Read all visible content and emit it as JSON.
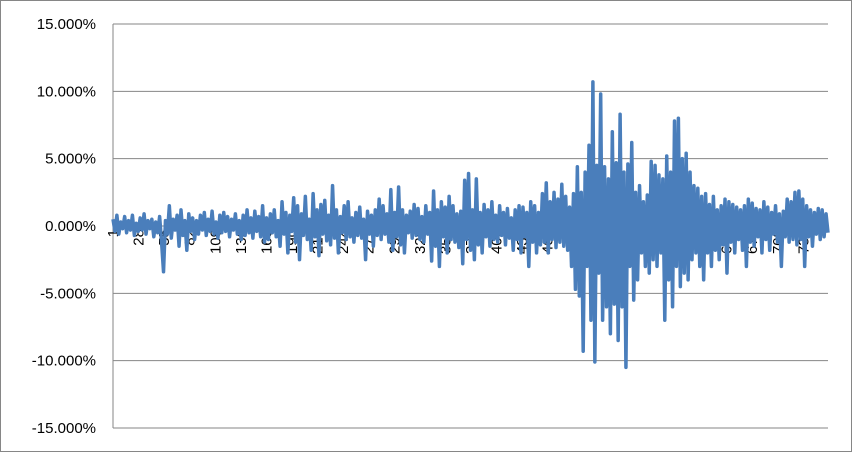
{
  "chart_data": {
    "type": "line",
    "title": "",
    "xlabel": "",
    "ylabel": "",
    "ylim": [
      -0.15,
      0.15
    ],
    "y_ticks": [
      "15.000%",
      "10.000%",
      "5.000%",
      "0.000%",
      "-5.000%",
      "-10.000%",
      "-15.000%"
    ],
    "y_tick_values": [
      0.15,
      0.1,
      0.05,
      0.0,
      -0.05,
      -0.1,
      -0.15
    ],
    "x_range": [
      1,
      756
    ],
    "x_ticks": [
      "1",
      "28",
      "55",
      "82",
      "109",
      "136",
      "163",
      "190",
      "217",
      "244",
      "271",
      "298",
      "325",
      "352",
      "379",
      "406",
      "433",
      "460",
      "487",
      "514",
      "541",
      "568",
      "595",
      "622",
      "649",
      "676",
      "703",
      "730"
    ],
    "gridlines": true,
    "legend": "none",
    "series_color": "#4a7ebb",
    "series": [
      {
        "name": "",
        "values": [
          0.005,
          -0.004,
          0.008,
          -0.006,
          0.003,
          -0.002,
          0.007,
          -0.005,
          0.004,
          -0.003,
          0.008,
          -0.007,
          0.002,
          -0.004,
          0.006,
          -0.003,
          0.009,
          -0.006,
          0.004,
          -0.002,
          0.005,
          -0.008,
          0.003,
          -0.005,
          0.007,
          -0.012,
          -0.034,
          0.004,
          -0.006,
          0.015,
          -0.009,
          0.005,
          -0.003,
          0.008,
          -0.015,
          0.012,
          -0.007,
          0.004,
          -0.018,
          0.009,
          -0.004,
          0.006,
          -0.01,
          0.004,
          -0.006,
          0.008,
          -0.003,
          0.01,
          -0.007,
          0.005,
          -0.004,
          0.011,
          -0.006,
          0.003,
          -0.009,
          0.008,
          -0.005,
          0.01,
          -0.004,
          0.007,
          -0.008,
          0.005,
          -0.003,
          0.009,
          -0.006,
          0.004,
          -0.01,
          0.008,
          -0.007,
          0.012,
          -0.005,
          0.006,
          -0.009,
          0.011,
          -0.004,
          0.007,
          -0.008,
          0.015,
          -0.012,
          0.006,
          -0.01,
          0.009,
          -0.005,
          0.012,
          -0.008,
          0.004,
          -0.015,
          0.018,
          -0.006,
          0.01,
          -0.02,
          0.008,
          -0.004,
          0.021,
          -0.012,
          0.015,
          -0.025,
          0.009,
          -0.007,
          0.022,
          -0.01,
          0.005,
          -0.018,
          0.024,
          -0.008,
          0.012,
          -0.022,
          0.016,
          -0.006,
          0.019,
          -0.011,
          0.008,
          -0.014,
          0.03,
          -0.009,
          0.012,
          -0.02,
          0.007,
          -0.005,
          0.015,
          -0.01,
          0.018,
          -0.008,
          0.006,
          -0.012,
          0.01,
          -0.007,
          0.014,
          -0.009,
          0.005,
          -0.025,
          0.011,
          -0.006,
          0.008,
          -0.015,
          0.012,
          -0.007,
          0.02,
          -0.01,
          0.015,
          -0.006,
          0.009,
          -0.012,
          0.027,
          -0.018,
          0.01,
          -0.008,
          0.029,
          -0.014,
          0.012,
          -0.02,
          0.008,
          -0.005,
          0.011,
          -0.009,
          0.016,
          -0.007,
          0.013,
          -0.01,
          0.007,
          -0.012,
          0.015,
          -0.006,
          0.01,
          -0.026,
          0.026,
          -0.015,
          0.012,
          -0.03,
          0.018,
          -0.008,
          0.014,
          -0.02,
          0.022,
          -0.01,
          0.015,
          -0.012,
          0.009,
          -0.016,
          0.011,
          -0.028,
          0.034,
          -0.01,
          0.039,
          -0.018,
          0.012,
          -0.025,
          0.035,
          -0.014,
          0.01,
          -0.02,
          0.016,
          -0.008,
          0.012,
          -0.015,
          0.018,
          -0.01,
          0.008,
          -0.012,
          0.015,
          -0.007,
          0.01,
          -0.014,
          0.013,
          -0.009,
          0.006,
          -0.018,
          0.012,
          -0.01,
          0.015,
          -0.02,
          0.014,
          -0.008,
          0.01,
          -0.03,
          0.018,
          -0.012,
          0.015,
          -0.02,
          0.01,
          -0.014,
          0.024,
          -0.012,
          0.032,
          -0.02,
          0.018,
          -0.01,
          0.025,
          -0.016,
          0.02,
          -0.012,
          0.031,
          -0.015,
          0.022,
          -0.018,
          0.014,
          -0.03,
          0.024,
          -0.047,
          0.044,
          -0.052,
          0.025,
          -0.093,
          0.04,
          -0.03,
          0.06,
          -0.07,
          0.107,
          -0.101,
          0.045,
          -0.035,
          0.098,
          -0.07,
          0.044,
          -0.06,
          0.035,
          -0.08,
          0.07,
          -0.058,
          0.047,
          -0.085,
          0.083,
          -0.06,
          0.04,
          -0.105,
          0.046,
          -0.03,
          0.062,
          -0.055,
          0.025,
          -0.04,
          0.03,
          -0.02,
          0.018,
          -0.03,
          0.023,
          -0.035,
          0.048,
          -0.025,
          0.045,
          -0.03,
          0.038,
          -0.02,
          0.035,
          -0.07,
          0.052,
          -0.04,
          0.04,
          -0.06,
          0.078,
          -0.03,
          0.08,
          -0.045,
          0.05,
          -0.035,
          0.054,
          -0.04,
          0.04,
          -0.025,
          0.03,
          -0.02,
          0.028,
          -0.03,
          0.022,
          -0.04,
          0.024,
          -0.02,
          0.016,
          -0.03,
          0.022,
          -0.018,
          0.012,
          -0.025,
          0.015,
          -0.014,
          0.02,
          -0.035,
          0.018,
          -0.012,
          0.016,
          -0.02,
          0.014,
          -0.01,
          0.012,
          -0.018,
          0.015,
          -0.03,
          0.02,
          -0.012,
          0.017,
          -0.015,
          0.013,
          -0.008,
          0.012,
          -0.02,
          0.018,
          -0.01,
          0.014,
          -0.018,
          0.01,
          -0.006,
          0.015,
          -0.012,
          0.009,
          -0.03,
          0.011,
          -0.008,
          0.02,
          -0.012,
          0.018,
          -0.01,
          0.025,
          -0.014,
          0.026,
          -0.01,
          0.02,
          -0.03,
          0.015,
          -0.008,
          0.012,
          -0.015,
          0.01,
          -0.006,
          0.013,
          -0.01,
          0.012,
          -0.008,
          0.009,
          -0.005
        ]
      }
    ]
  }
}
